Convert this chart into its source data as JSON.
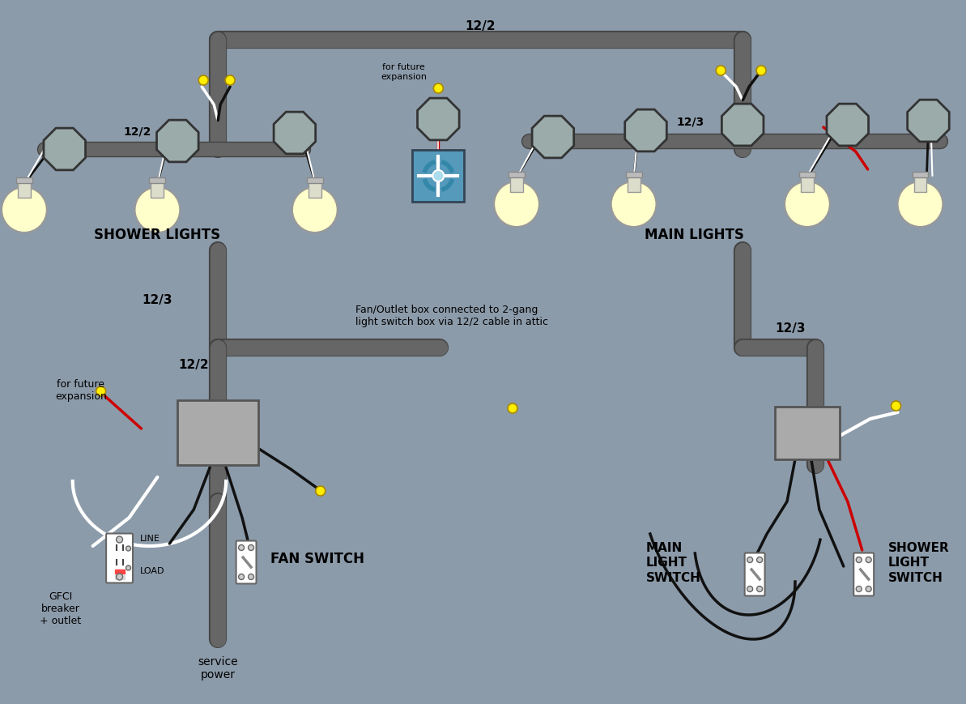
{
  "bg_color": "#8c9baa",
  "wire_dark": "#111111",
  "wire_white": "#ffffff",
  "wire_red": "#cc0000",
  "wire_cable": "#555555",
  "labels": {
    "shower_lights": "SHOWER LIGHTS",
    "main_lights": "MAIN LIGHTS",
    "fan_switch": "FAN SWITCH",
    "main_light_switch": "MAIN\nLIGHT\nSWITCH",
    "shower_light_switch": "SHOWER\nLIGHT\nSWITCH",
    "gfci": "GFCI\nbreaker\n+ outlet",
    "line": "LINE",
    "load": "LOAD",
    "service_power": "service\npower",
    "for_future_expansion_top": "for future\nexpansion",
    "for_future_expansion_bottom": "for future\nexpansion",
    "cable_12_2_top": "12/2",
    "cable_12_3_left": "12/3",
    "cable_12_2_left": "12/2",
    "cable_12_3_right": "12/3",
    "cable_12_2_shower": "12/2",
    "cable_12_3_main": "12/3",
    "fan_outlet_annotation": "Fan/Outlet box connected to 2-gang\nlight switch box via 12/2 cable in attic"
  }
}
